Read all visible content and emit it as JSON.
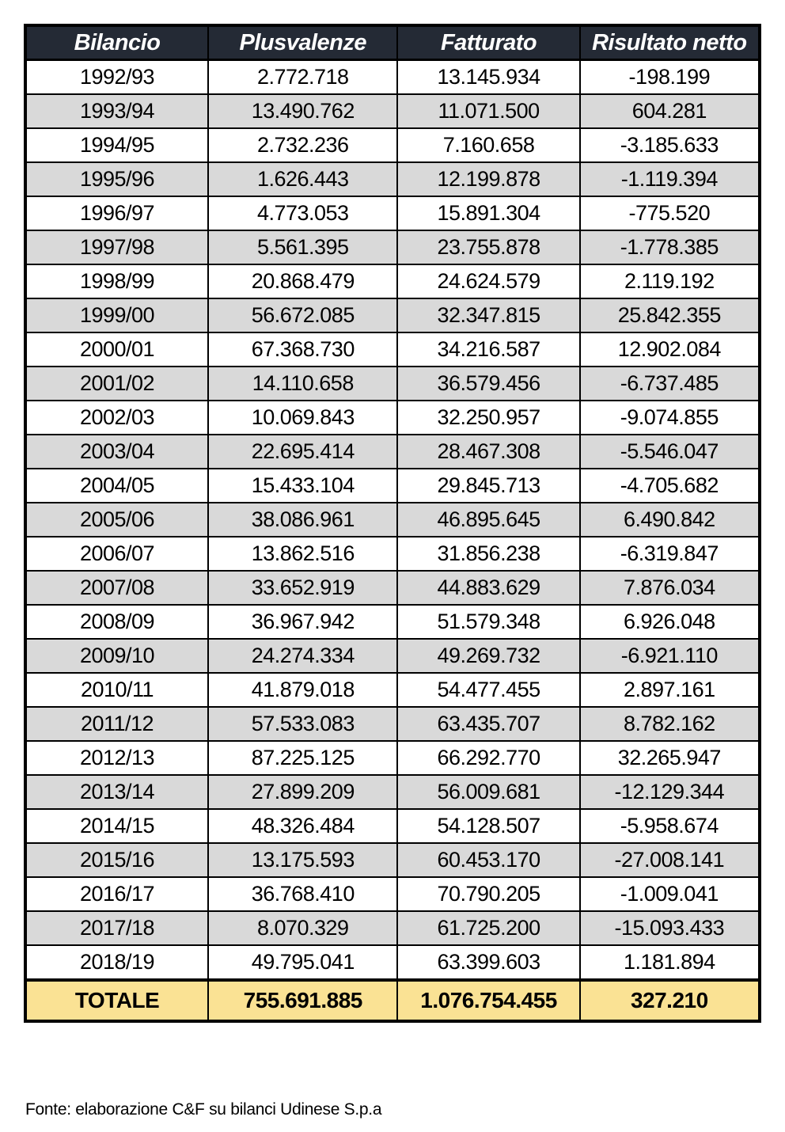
{
  "chart_data": {
    "type": "table",
    "title": "",
    "categories": [
      "1992/93",
      "1993/94",
      "1994/95",
      "1995/96",
      "1996/97",
      "1997/98",
      "1998/99",
      "1999/00",
      "2000/01",
      "2001/02",
      "2002/03",
      "2003/04",
      "2004/05",
      "2005/06",
      "2006/07",
      "2007/08",
      "2008/09",
      "2009/10",
      "2010/11",
      "2011/12",
      "2012/13",
      "2013/14",
      "2014/15",
      "2015/16",
      "2016/17",
      "2017/18",
      "2018/19"
    ],
    "series": [
      {
        "name": "Plusvalenze",
        "values": [
          2772718,
          13490762,
          2732236,
          1626443,
          4773053,
          5561395,
          20868479,
          56672085,
          67368730,
          14110658,
          10069843,
          22695414,
          15433104,
          38086961,
          13862516,
          33652919,
          36967942,
          24274334,
          41879018,
          57533083,
          87225125,
          27899209,
          48326484,
          13175593,
          36768410,
          8070329,
          49795041
        ]
      },
      {
        "name": "Fatturato",
        "values": [
          13145934,
          11071500,
          7160658,
          12199878,
          15891304,
          23755878,
          24624579,
          32347815,
          34216587,
          36579456,
          32250957,
          28467308,
          29845713,
          46895645,
          31856238,
          44883629,
          51579348,
          49269732,
          54477455,
          63435707,
          66292770,
          56009681,
          54128507,
          60453170,
          70790205,
          61725200,
          63399603
        ]
      },
      {
        "name": "Risultato netto",
        "values": [
          -198199,
          604281,
          -3185633,
          -1119394,
          -775520,
          -1778385,
          2119192,
          25842355,
          12902084,
          -6737485,
          -9074855,
          -5546047,
          -4705682,
          6490842,
          -6319847,
          7876034,
          6926048,
          -6921110,
          2897161,
          8782162,
          32265947,
          -12129344,
          -5958674,
          -27008141,
          -1009041,
          -15093433,
          1181894
        ]
      }
    ],
    "totals": {
      "Plusvalenze": 755691885,
      "Fatturato": 1076754455,
      "Risultato netto": 327210
    }
  },
  "table": {
    "columns": [
      "Bilancio",
      "Plusvalenze",
      "Fatturato",
      "Risultato netto"
    ],
    "rows": [
      [
        "1992/93",
        "2.772.718",
        "13.145.934",
        "-198.199"
      ],
      [
        "1993/94",
        "13.490.762",
        "11.071.500",
        "604.281"
      ],
      [
        "1994/95",
        "2.732.236",
        "7.160.658",
        "-3.185.633"
      ],
      [
        "1995/96",
        "1.626.443",
        "12.199.878",
        "-1.119.394"
      ],
      [
        "1996/97",
        "4.773.053",
        "15.891.304",
        "-775.520"
      ],
      [
        "1997/98",
        "5.561.395",
        "23.755.878",
        "-1.778.385"
      ],
      [
        "1998/99",
        "20.868.479",
        "24.624.579",
        "2.119.192"
      ],
      [
        "1999/00",
        "56.672.085",
        "32.347.815",
        "25.842.355"
      ],
      [
        "2000/01",
        "67.368.730",
        "34.216.587",
        "12.902.084"
      ],
      [
        "2001/02",
        "14.110.658",
        "36.579.456",
        "-6.737.485"
      ],
      [
        "2002/03",
        "10.069.843",
        "32.250.957",
        "-9.074.855"
      ],
      [
        "2003/04",
        "22.695.414",
        "28.467.308",
        "-5.546.047"
      ],
      [
        "2004/05",
        "15.433.104",
        "29.845.713",
        "-4.705.682"
      ],
      [
        "2005/06",
        "38.086.961",
        "46.895.645",
        "6.490.842"
      ],
      [
        "2006/07",
        "13.862.516",
        "31.856.238",
        "-6.319.847"
      ],
      [
        "2007/08",
        "33.652.919",
        "44.883.629",
        "7.876.034"
      ],
      [
        "2008/09",
        "36.967.942",
        "51.579.348",
        "6.926.048"
      ],
      [
        "2009/10",
        "24.274.334",
        "49.269.732",
        "-6.921.110"
      ],
      [
        "2010/11",
        "41.879.018",
        "54.477.455",
        "2.897.161"
      ],
      [
        "2011/12",
        "57.533.083",
        "63.435.707",
        "8.782.162"
      ],
      [
        "2012/13",
        "87.225.125",
        "66.292.770",
        "32.265.947"
      ],
      [
        "2013/14",
        "27.899.209",
        "56.009.681",
        "-12.129.344"
      ],
      [
        "2014/15",
        "48.326.484",
        "54.128.507",
        "-5.958.674"
      ],
      [
        "2015/16",
        "13.175.593",
        "60.453.170",
        "-27.008.141"
      ],
      [
        "2016/17",
        "36.768.410",
        "70.790.205",
        "-1.009.041"
      ],
      [
        "2017/18",
        "8.070.329",
        "61.725.200",
        "-15.093.433"
      ],
      [
        "2018/19",
        "49.795.041",
        "63.399.603",
        "1.181.894"
      ]
    ],
    "total_row": [
      "TOTALE",
      "755.691.885",
      "1.076.754.455",
      "327.210"
    ]
  },
  "footer": {
    "source_note": "Fonte: elaborazione C&F su bilanci Udinese S.p.a"
  },
  "colors": {
    "header_bg": "#242a35",
    "header_text": "#ffffff",
    "row_bg": "#ffffff",
    "row_alt_bg": "#d9d9d9",
    "total_bg": "#fae294",
    "border": "#000000"
  }
}
